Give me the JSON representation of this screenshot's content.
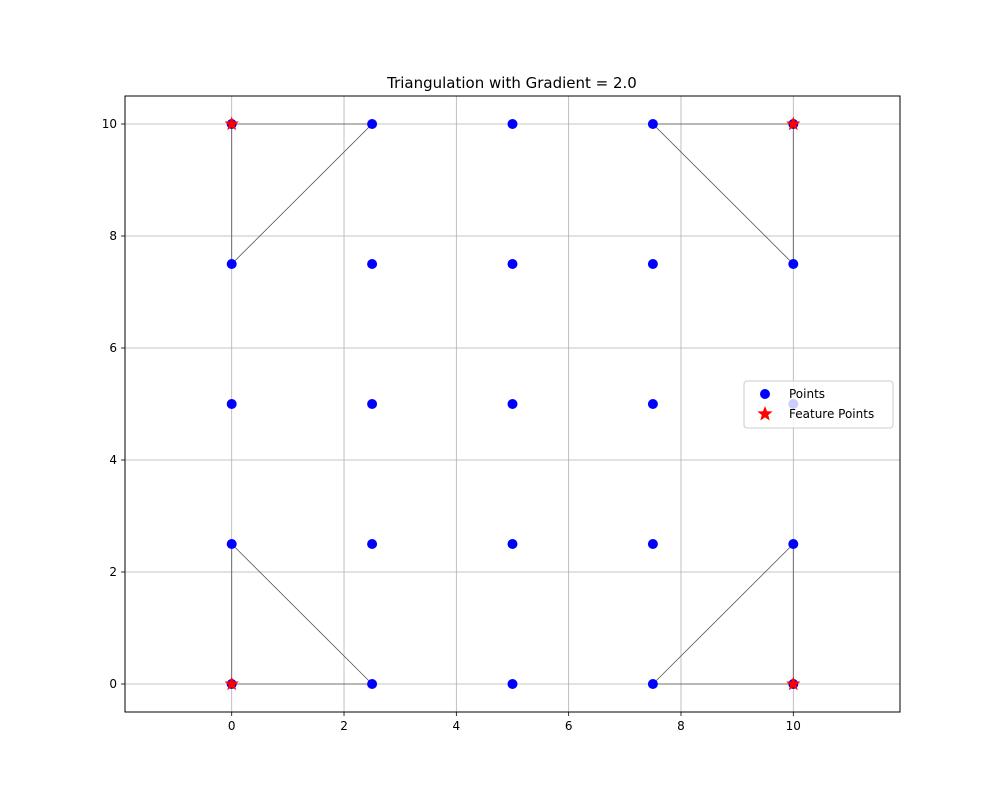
{
  "chart_data": {
    "type": "scatter",
    "title": "Triangulation with Gradient = 2.0",
    "xlabel": "",
    "ylabel": "",
    "xlim": [
      -1.9,
      11.9
    ],
    "ylim": [
      -0.5,
      10.5
    ],
    "xticks": [
      0,
      2,
      4,
      6,
      8,
      10
    ],
    "yticks": [
      0,
      2,
      4,
      6,
      8,
      10
    ],
    "grid": true,
    "legend_position": "center-right",
    "colors": {
      "points": "#0000ff",
      "features": "#ff0000",
      "edges": "#555555",
      "grid": "#b0b0b0"
    },
    "series": [
      {
        "name": "Points",
        "marker": "circle",
        "x": [
          0,
          2.5,
          5,
          7.5,
          10,
          0,
          2.5,
          5,
          7.5,
          10,
          0,
          2.5,
          5,
          7.5,
          10,
          0,
          2.5,
          5,
          7.5,
          10,
          0,
          2.5,
          5,
          7.5,
          10
        ],
        "y": [
          0,
          0,
          0,
          0,
          0,
          2.5,
          2.5,
          2.5,
          2.5,
          2.5,
          5,
          5,
          5,
          5,
          5,
          7.5,
          7.5,
          7.5,
          7.5,
          7.5,
          10,
          10,
          10,
          10,
          10
        ]
      },
      {
        "name": "Feature Points",
        "marker": "star",
        "x": [
          0,
          10,
          0,
          10
        ],
        "y": [
          0,
          0,
          10,
          10
        ]
      }
    ],
    "edges": [
      [
        [
          0,
          0
        ],
        [
          2.5,
          0
        ]
      ],
      [
        [
          0,
          0
        ],
        [
          0,
          2.5
        ]
      ],
      [
        [
          0,
          2.5
        ],
        [
          2.5,
          0
        ]
      ],
      [
        [
          10,
          0
        ],
        [
          7.5,
          0
        ]
      ],
      [
        [
          10,
          0
        ],
        [
          10,
          2.5
        ]
      ],
      [
        [
          7.5,
          0
        ],
        [
          10,
          2.5
        ]
      ],
      [
        [
          0,
          10
        ],
        [
          2.5,
          10
        ]
      ],
      [
        [
          0,
          10
        ],
        [
          0,
          7.5
        ]
      ],
      [
        [
          0,
          7.5
        ],
        [
          2.5,
          10
        ]
      ],
      [
        [
          10,
          10
        ],
        [
          7.5,
          10
        ]
      ],
      [
        [
          10,
          10
        ],
        [
          10,
          7.5
        ]
      ],
      [
        [
          7.5,
          10
        ],
        [
          10,
          7.5
        ]
      ]
    ]
  }
}
